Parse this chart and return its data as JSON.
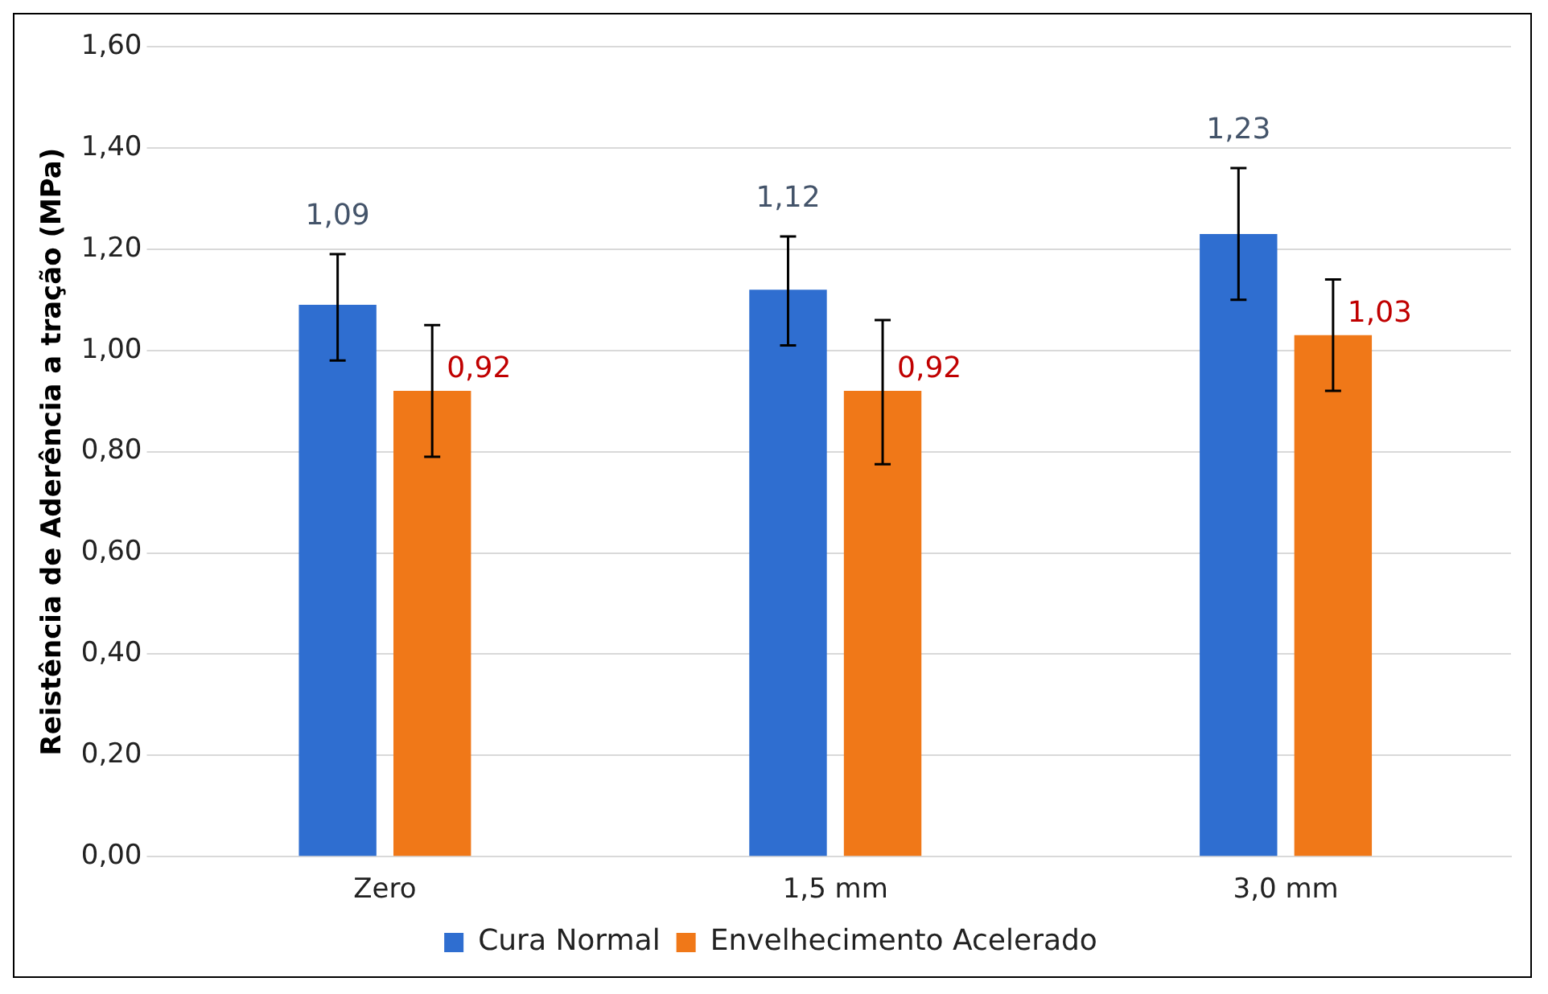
{
  "chart_data": {
    "type": "bar",
    "ylabel": "Reistência de Aderência a tração (MPa)",
    "categories": [
      "Zero",
      "1,5 mm",
      "3,0 mm"
    ],
    "series": [
      {
        "name": "Cura Normal",
        "color": "#2f6ed0",
        "values": [
          1.09,
          1.12,
          1.23
        ],
        "errors": [
          [
            0.98,
            1.19
          ],
          [
            1.01,
            1.225
          ],
          [
            1.1,
            1.36
          ]
        ],
        "value_labels": [
          "1,09",
          "1,12",
          "1,23"
        ]
      },
      {
        "name": "Envelhecimento Acelerado",
        "color": "#f07818",
        "values": [
          0.92,
          0.92,
          1.03
        ],
        "errors": [
          [
            0.79,
            1.05
          ],
          [
            0.775,
            1.06
          ],
          [
            0.92,
            1.14
          ]
        ],
        "value_labels": [
          "0,92",
          "0,92",
          "1,03"
        ]
      }
    ],
    "ylim": [
      0,
      1.6
    ],
    "yticks": [
      {
        "value": 0,
        "label": "0,00"
      },
      {
        "value": 0.2,
        "label": "0,20"
      },
      {
        "value": 0.4,
        "label": "0,40"
      },
      {
        "value": 0.6,
        "label": "0,60"
      },
      {
        "value": 0.8,
        "label": "0,80"
      },
      {
        "value": 1.0,
        "label": "1,00"
      },
      {
        "value": 1.2,
        "label": "1,20"
      },
      {
        "value": 1.4,
        "label": "1,40"
      },
      {
        "value": 1.6,
        "label": "1,60"
      }
    ],
    "grid": "y",
    "legend": "bottom"
  }
}
